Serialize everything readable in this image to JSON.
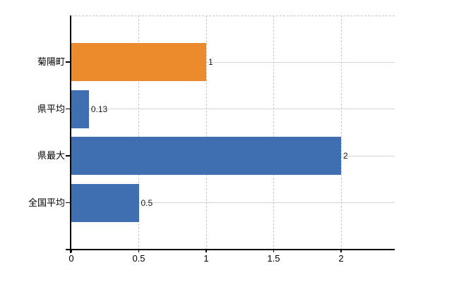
{
  "chart_data": {
    "type": "bar",
    "orientation": "horizontal",
    "categories": [
      "菊陽町",
      "県平均",
      "県最大",
      "全国平均"
    ],
    "values": [
      1,
      0.13,
      2,
      0.5
    ],
    "value_labels": [
      "1",
      "0.13",
      "2",
      "0.5"
    ],
    "bar_colors": [
      "#eb8b2c",
      "#3f6fb0",
      "#3f6fb0",
      "#3f6fb0"
    ],
    "x_ticks": [
      {
        "value": 0,
        "label": "0"
      },
      {
        "value": 0.5,
        "label": "0.5"
      },
      {
        "value": 1,
        "label": "1"
      },
      {
        "value": 1.5,
        "label": "1.5"
      },
      {
        "value": 2,
        "label": "2"
      }
    ],
    "xlim": [
      0,
      2.4
    ],
    "grid": true,
    "legend": "none"
  },
  "colors": {
    "highlight_bar": "#eb8b2c",
    "default_bar": "#3f6fb0",
    "category_grid_line": "#d5d5d5",
    "dashed_grid_line": "#c9c9c9",
    "axis_line": "#000000",
    "text": "#1a1a1a",
    "background": "#ffffff"
  }
}
